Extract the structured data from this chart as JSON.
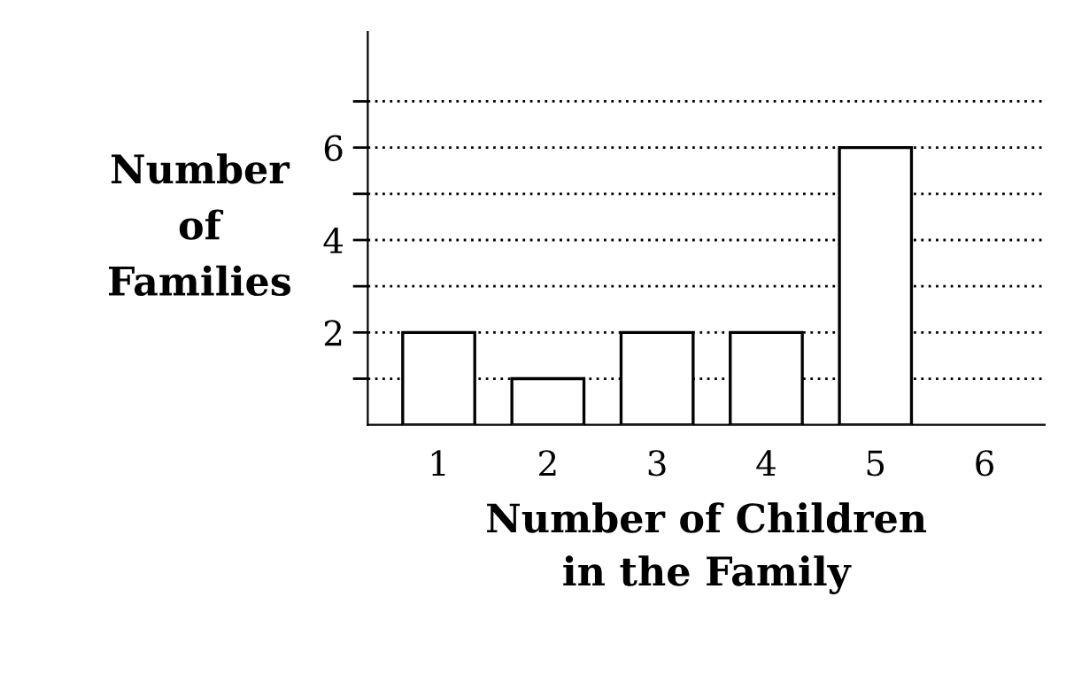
{
  "chart_data": {
    "type": "bar",
    "xlabel": "Number of Children\nin the Family",
    "ylabel": "Number\nof\nFamilies",
    "categories": [
      "1",
      "2",
      "3",
      "4",
      "5",
      "6"
    ],
    "values": [
      2,
      1,
      2,
      2,
      6,
      0
    ],
    "color": "#ffffff",
    "ylim": [
      0,
      8.5
    ],
    "yticks": [
      {
        "value": 1,
        "label": null
      },
      2,
      {
        "value": 3,
        "label": null
      },
      4,
      {
        "value": 5,
        "label": null
      },
      6,
      {
        "value": 7,
        "label": null
      }
    ],
    "grid": "y",
    "legend": false
  }
}
